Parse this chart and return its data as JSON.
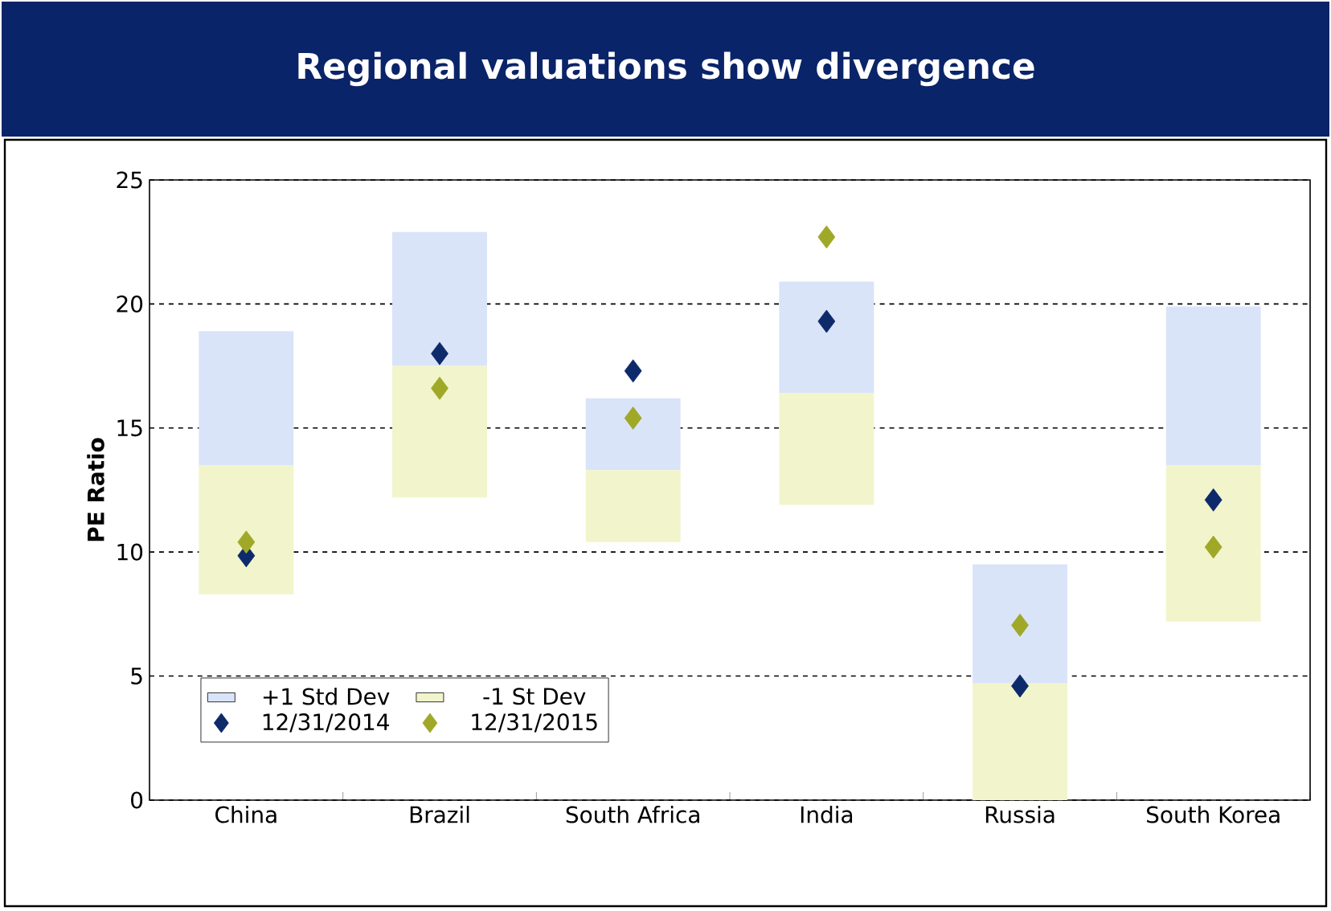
{
  "chart_data": {
    "type": "bar",
    "title": "Regional valuations show divergence",
    "ylabel": "PE Ratio",
    "categories": [
      "China",
      "Brazil",
      "South Africa",
      "India",
      "Russia",
      "South Korea"
    ],
    "series": [
      {
        "name": "+1 Std Dev",
        "color": "#dae4f8",
        "base": [
          13.5,
          17.5,
          13.3,
          16.4,
          4.7,
          13.5
        ],
        "values": [
          5.4,
          5.4,
          2.9,
          4.5,
          4.8,
          6.4
        ]
      },
      {
        "name": "-1 St Dev",
        "color": "#f2f5cb",
        "base": [
          8.3,
          12.2,
          10.4,
          11.9,
          0,
          7.2
        ],
        "values": [
          5.2,
          5.3,
          2.9,
          4.5,
          4.7,
          6.3
        ]
      },
      {
        "name": "12/31/2014",
        "type": "scatter",
        "marker": "diamond",
        "color": "#0d2a6b",
        "values": [
          9.85,
          18.0,
          17.3,
          19.3,
          4.6,
          12.1
        ]
      },
      {
        "name": "12/31/2015",
        "type": "scatter",
        "marker": "diamond",
        "color": "#a0a828",
        "values": [
          10.4,
          16.6,
          15.4,
          22.7,
          7.05,
          10.2
        ]
      }
    ],
    "ylim": [
      0,
      25
    ],
    "yticks": [
      0,
      5,
      10,
      15,
      20,
      25
    ],
    "grid": "y",
    "legend": "bottom left"
  }
}
